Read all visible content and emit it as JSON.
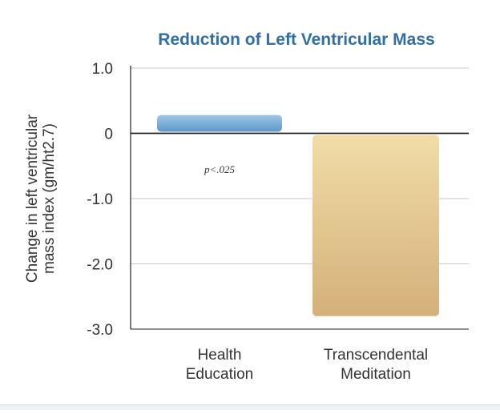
{
  "chart_data": {
    "type": "bar",
    "title": "Reduction of Left Ventricular Mass",
    "ylabel_lines": [
      "Change in left ventricular",
      "mass index (gm/ht2.7)"
    ],
    "xlabel": "",
    "categories": [
      [
        "Health",
        "Education"
      ],
      [
        "Transcendental",
        "Meditation"
      ]
    ],
    "values": [
      0.28,
      -2.8
    ],
    "ylim": [
      -3.0,
      1.0
    ],
    "yticks": [
      1.0,
      0,
      -1.0,
      -2.0,
      -3.0
    ],
    "ytick_labels": [
      "1.0",
      "0",
      "-1.0",
      "-2.0",
      "-3.0"
    ],
    "grid": true,
    "annotation": "p<.025",
    "colors": {
      "title": "#2f6fa6",
      "bar1_top": "#9cc6e6",
      "bar1_bottom": "#5f97c7",
      "bar2_top": "#f1dca7",
      "bar2_bottom": "#d4b07a",
      "grid": "#c9c9c9",
      "axis": "#222222",
      "text": "#333333"
    }
  }
}
